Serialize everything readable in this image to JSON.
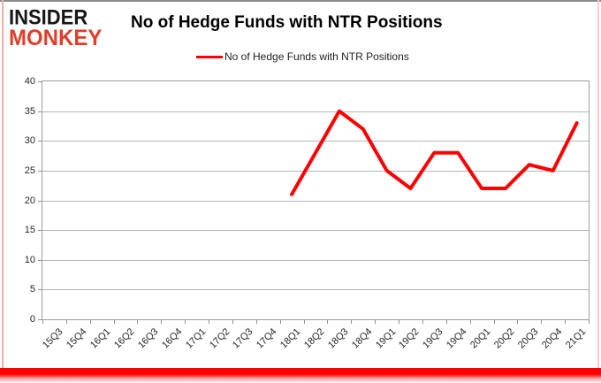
{
  "logo": {
    "line1": "INSIDER",
    "line2": "MONKEY"
  },
  "header": {
    "title": "No of Hedge Funds with NTR Positions"
  },
  "legend": {
    "label": "No of Hedge Funds with NTR Positions",
    "color": "#ff0000"
  },
  "colors": {
    "series_red": "#ff0000",
    "gridline": "#b4b4b4",
    "axis_text": "#262626",
    "logo_red": "#df3e2b",
    "frame_glow_red": "#ff0000"
  },
  "chart_data": {
    "type": "line",
    "title": "No of Hedge Funds with NTR Positions",
    "xlabel": "",
    "ylabel": "",
    "categories": [
      "15Q3",
      "15Q4",
      "16Q1",
      "16Q2",
      "16Q3",
      "16Q4",
      "17Q1",
      "17Q2",
      "17Q3",
      "17Q4",
      "18Q1",
      "18Q2",
      "18Q3",
      "18Q4",
      "19Q1",
      "19Q2",
      "19Q3",
      "19Q4",
      "20Q1",
      "20Q2",
      "20Q3",
      "20Q4",
      "21Q1"
    ],
    "series": [
      {
        "name": "No of Hedge Funds with NTR Positions",
        "color": "#ff0000",
        "values": [
          null,
          null,
          null,
          null,
          null,
          null,
          null,
          null,
          null,
          null,
          21,
          28,
          35,
          32,
          25,
          22,
          28,
          28,
          22,
          22,
          26,
          25,
          33
        ]
      }
    ],
    "ylim": [
      0,
      40
    ],
    "ytick_step": 5,
    "grid": true,
    "legend_position": "top"
  }
}
